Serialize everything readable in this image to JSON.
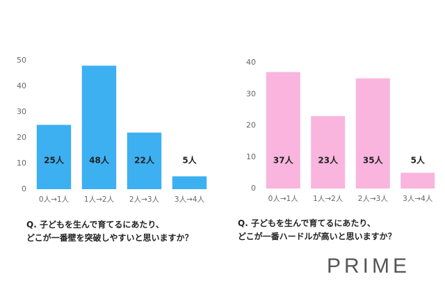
{
  "chart_data": [
    {
      "type": "bar",
      "title": "Q. 子どもを生んで育てるにあたり、\nどこが一番壁を突破しやすいと思いますか？",
      "categories": [
        "0人→1人",
        "1人→2人",
        "2人→3人",
        "3人→4人"
      ],
      "values": [
        25,
        48,
        22,
        5
      ],
      "value_labels": [
        "25人",
        "48人",
        "22人",
        "5人"
      ],
      "color": "#3db0f2",
      "ylim": [
        0,
        50
      ],
      "yticks": [
        0,
        10,
        20,
        30,
        40,
        50
      ],
      "grid": false
    },
    {
      "type": "bar",
      "title": "Q. 子どもを生んで育てるにあたり、\nどこが一番ハードルが高いと思いますか？",
      "categories": [
        "0人→1人",
        "1人→2人",
        "2人→3人",
        "3人→4人"
      ],
      "values": [
        37,
        23,
        35,
        5
      ],
      "value_labels": [
        "37人",
        "23人",
        "35人",
        "5人"
      ],
      "color": "#f9b5dd",
      "ylim": [
        0,
        40
      ],
      "yticks": [
        0,
        10,
        20,
        30,
        40
      ],
      "grid": false
    }
  ],
  "brand": "PRIME"
}
